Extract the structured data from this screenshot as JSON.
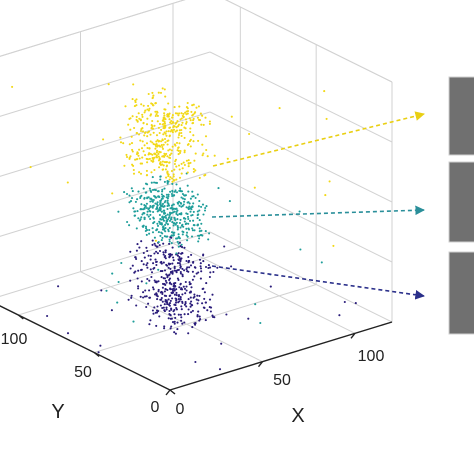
{
  "chart_data": {
    "type": "scatter",
    "projection": "3d",
    "title": "",
    "xlabel": "X",
    "ylabel": "Y",
    "zlabel": "",
    "xlim": [
      0,
      120
    ],
    "ylim": [
      0,
      120
    ],
    "x_ticks": [
      "0",
      "50",
      "100"
    ],
    "y_ticks": [
      "0",
      "50",
      "100"
    ],
    "grid": true,
    "series": [
      {
        "color": "#2a1c7a",
        "x_range": [
          35,
          75
        ],
        "y_range": [
          45,
          90
        ],
        "z_range": [
          0.0,
          0.38
        ]
      },
      {
        "color": "#1f9e9a",
        "x_range": [
          30,
          70
        ],
        "y_range": [
          45,
          90
        ],
        "z_range": [
          0.38,
          0.62
        ]
      },
      {
        "color": "#f2d816",
        "x_range": [
          25,
          70
        ],
        "y_range": [
          45,
          90
        ],
        "z_range": [
          0.62,
          1.0
        ]
      }
    ],
    "callouts": [
      {
        "series": 2,
        "style": "dashed-arrow",
        "color": "#e9cf12"
      },
      {
        "series": 1,
        "style": "dashed-arrow",
        "color": "#2a8f9a"
      },
      {
        "series": 0,
        "style": "dashed-arrow",
        "color": "#2a2f8a"
      }
    ],
    "thumbnails": [
      {
        "color": "#707070"
      },
      {
        "color": "#707070"
      },
      {
        "color": "#707070"
      }
    ]
  }
}
